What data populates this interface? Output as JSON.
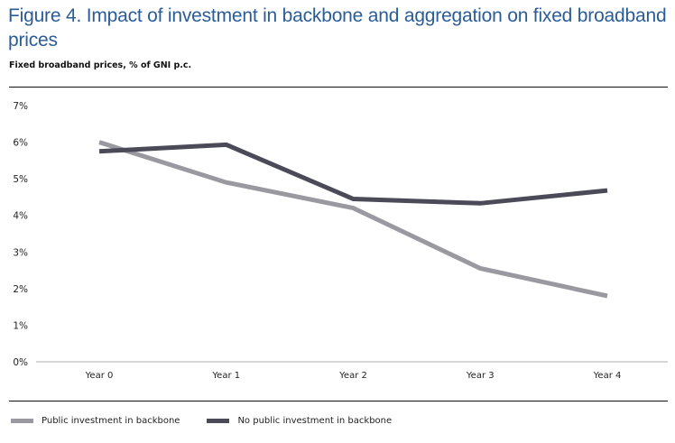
{
  "figure": {
    "title": "Figure 4. Impact of investment in backbone and aggregation on fixed broadband prices",
    "subtitle": "Fixed broadband prices, % of GNI p.c."
  },
  "colors": {
    "title": "#2a5d98",
    "public": "#9a99a0",
    "no_public": "#4a4a58",
    "axis": "#bdbdbd",
    "rule": "#111111"
  },
  "legend": [
    {
      "label": "Public investment in backbone",
      "series": "public"
    },
    {
      "label": "No public investment in backbone",
      "series": "no_public"
    }
  ],
  "chart_data": {
    "type": "line",
    "title": "Figure 4. Impact of investment in backbone and aggregation on fixed broadband prices",
    "ylabel": "Fixed broadband prices, % of GNI p.c.",
    "xlabel": "",
    "categories": [
      "Year 0",
      "Year 1",
      "Year 2",
      "Year 3",
      "Year 4"
    ],
    "ylim": [
      0,
      7
    ],
    "yticks": [
      0,
      1,
      2,
      3,
      4,
      5,
      6,
      7
    ],
    "ytick_labels": [
      "0%",
      "1%",
      "2%",
      "3%",
      "4%",
      "5%",
      "6%",
      "7%"
    ],
    "grid": false,
    "legend_position": "bottom-left",
    "series": [
      {
        "name": "Public investment in backbone",
        "key": "public",
        "values": [
          6.0,
          4.9,
          4.2,
          2.55,
          1.8
        ]
      },
      {
        "name": "No public investment in backbone",
        "key": "no_public",
        "values": [
          5.75,
          5.93,
          4.45,
          4.33,
          4.68
        ]
      }
    ]
  }
}
